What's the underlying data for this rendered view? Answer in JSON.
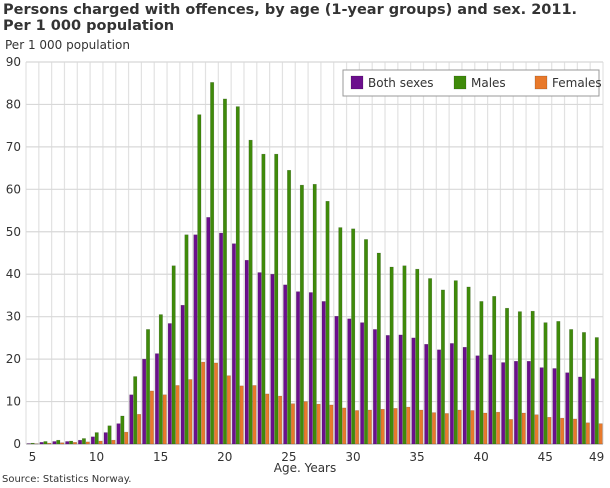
{
  "chart_data": {
    "type": "bar",
    "title": "Persons charged with offences, by age (1-year groups) and sex. 2011.",
    "subtitle": "Per 1 000 population",
    "unit_label": "Per 1 000 population",
    "xlabel": "Age. Years",
    "ylabel": "",
    "source": "Source: Statistics Norway.",
    "ylim": [
      0,
      90
    ],
    "yticks": [
      0,
      10,
      20,
      30,
      40,
      50,
      60,
      70,
      80,
      90
    ],
    "xticks": [
      5,
      10,
      15,
      20,
      25,
      30,
      35,
      40,
      45,
      49
    ],
    "grid": true,
    "legend_position": "top-right",
    "categories": [
      5,
      6,
      7,
      8,
      9,
      10,
      11,
      12,
      13,
      14,
      15,
      16,
      17,
      18,
      19,
      20,
      21,
      22,
      23,
      24,
      25,
      26,
      27,
      28,
      29,
      30,
      31,
      32,
      33,
      34,
      35,
      36,
      37,
      38,
      39,
      40,
      41,
      42,
      43,
      44,
      45,
      46,
      47,
      48,
      49
    ],
    "series": [
      {
        "name": "Both sexes",
        "color": "#6b0f8c",
        "values": [
          0.1,
          0.4,
          0.6,
          0.6,
          0.9,
          1.7,
          2.7,
          4.8,
          11.6,
          20.0,
          21.3,
          28.4,
          32.7,
          49.3,
          53.4,
          49.7,
          47.2,
          43.3,
          40.4,
          40.0,
          37.5,
          35.9,
          35.7,
          33.6,
          30.1,
          29.5,
          28.6,
          27.0,
          25.6,
          25.7,
          25.0,
          23.5,
          22.2,
          23.7,
          22.8,
          20.8,
          21.0,
          19.2,
          19.5,
          19.5,
          18.0,
          17.8,
          16.8,
          15.8,
          15.4
        ]
      },
      {
        "name": "Males",
        "color": "#3f8a0a",
        "values": [
          0.2,
          0.6,
          0.9,
          0.7,
          1.3,
          2.7,
          4.3,
          6.6,
          15.9,
          27.0,
          30.5,
          42.0,
          49.3,
          77.6,
          85.2,
          81.3,
          79.5,
          71.6,
          68.3,
          68.3,
          64.5,
          61.0,
          61.2,
          57.2,
          51.0,
          50.7,
          48.2,
          45.0,
          41.7,
          42.0,
          41.2,
          39.0,
          36.3,
          38.5,
          37.0,
          33.6,
          34.8,
          32.0,
          31.2,
          31.3,
          28.6,
          28.9,
          27.0,
          26.3,
          25.1
        ]
      },
      {
        "name": "Females",
        "color": "#e8792b",
        "values": [
          0.05,
          0.2,
          0.3,
          0.4,
          0.5,
          0.7,
          0.9,
          2.8,
          7.0,
          12.5,
          11.6,
          13.8,
          15.2,
          19.3,
          19.1,
          16.1,
          13.7,
          13.8,
          11.8,
          11.3,
          9.5,
          10.0,
          9.4,
          9.2,
          8.5,
          7.9,
          8.0,
          8.2,
          8.4,
          8.7,
          8.0,
          7.4,
          7.2,
          8.0,
          7.9,
          7.3,
          7.5,
          5.8,
          7.3,
          6.9,
          6.3,
          6.1,
          5.9,
          5.0,
          4.8
        ]
      }
    ]
  }
}
